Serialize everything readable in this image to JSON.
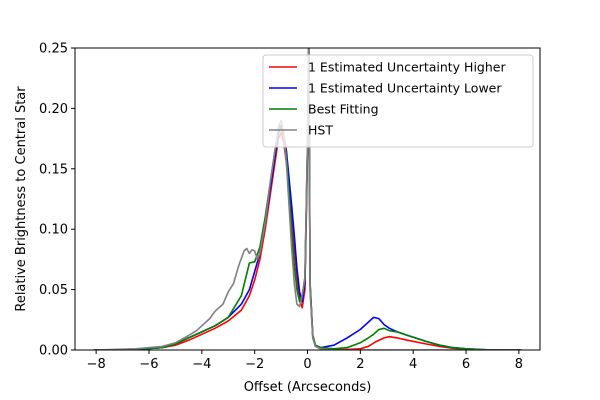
{
  "chart_data": {
    "type": "line",
    "title": "",
    "xlabel": "Offset (Arcseconds)",
    "ylabel": "Relative Brightness to Central Star",
    "xlim": [
      -8.8,
      8.8
    ],
    "ylim": [
      0,
      0.25
    ],
    "xticks": [
      -8,
      -6,
      -4,
      -2,
      0,
      2,
      4,
      6,
      8
    ],
    "xtick_labels": [
      "−8",
      "−6",
      "−4",
      "−2",
      "0",
      "2",
      "4",
      "6",
      "8"
    ],
    "yticks": [
      0,
      0.05,
      0.1,
      0.15,
      0.2,
      0.25
    ],
    "ytick_labels": [
      "0.00",
      "0.05",
      "0.10",
      "0.15",
      "0.20",
      "0.25"
    ],
    "grid": false,
    "legend_position": "top-right",
    "series": [
      {
        "name": "1 Estimated Uncertainty Higher",
        "color": "#ff0000",
        "x": [
          -8.1,
          -6.5,
          -5.5,
          -5.0,
          -4.5,
          -4.0,
          -3.5,
          -3.0,
          -2.5,
          -2.2,
          -2.0,
          -1.8,
          -1.6,
          -1.4,
          -1.2,
          -1.1,
          -1.0,
          -0.9,
          -0.8,
          -0.6,
          -0.5,
          -0.4,
          -0.3,
          -0.2,
          -0.1,
          0.0,
          0.05,
          0.1,
          0.2,
          0.3,
          0.5,
          1.0,
          1.5,
          2.0,
          2.3,
          2.6,
          2.9,
          3.1,
          3.4,
          3.8,
          4.5,
          5.0,
          5.5,
          6.0,
          7.0,
          8.1
        ],
        "y": [
          0.0,
          0.0005,
          0.002,
          0.004,
          0.008,
          0.013,
          0.018,
          0.024,
          0.033,
          0.045,
          0.058,
          0.075,
          0.1,
          0.13,
          0.16,
          0.175,
          0.18,
          0.172,
          0.155,
          0.11,
          0.085,
          0.06,
          0.042,
          0.035,
          0.05,
          0.16,
          0.255,
          0.05,
          0.01,
          0.003,
          0.001,
          0.0,
          0.0005,
          0.001,
          0.003,
          0.007,
          0.01,
          0.011,
          0.01,
          0.008,
          0.005,
          0.003,
          0.0015,
          0.0005,
          0.0,
          0.0
        ]
      },
      {
        "name": "1 Estimated Uncertainty Lower",
        "color": "#0000ff",
        "x": [
          -8.1,
          -6.5,
          -5.5,
          -5.0,
          -4.5,
          -4.0,
          -3.5,
          -3.0,
          -2.5,
          -2.2,
          -2.0,
          -1.8,
          -1.6,
          -1.4,
          -1.2,
          -1.1,
          -1.0,
          -0.9,
          -0.8,
          -0.6,
          -0.5,
          -0.4,
          -0.3,
          -0.2,
          -0.1,
          0.0,
          0.05,
          0.1,
          0.2,
          0.3,
          0.5,
          1.0,
          1.5,
          2.0,
          2.3,
          2.5,
          2.7,
          2.9,
          3.1,
          3.4,
          3.8,
          4.5,
          5.0,
          5.5,
          6.0,
          7.0,
          8.1
        ],
        "y": [
          0.0,
          0.0005,
          0.002,
          0.005,
          0.01,
          0.015,
          0.02,
          0.027,
          0.038,
          0.05,
          0.065,
          0.08,
          0.105,
          0.135,
          0.165,
          0.18,
          0.184,
          0.178,
          0.165,
          0.12,
          0.095,
          0.068,
          0.048,
          0.04,
          0.055,
          0.17,
          0.258,
          0.055,
          0.012,
          0.004,
          0.002,
          0.004,
          0.01,
          0.017,
          0.023,
          0.027,
          0.026,
          0.021,
          0.018,
          0.015,
          0.012,
          0.007,
          0.004,
          0.002,
          0.001,
          0.0,
          0.0
        ]
      },
      {
        "name": "Best Fitting",
        "color": "#008000",
        "x": [
          -8.1,
          -6.5,
          -5.5,
          -5.0,
          -4.5,
          -4.0,
          -3.5,
          -3.0,
          -2.5,
          -2.2,
          -2.0,
          -1.8,
          -1.6,
          -1.4,
          -1.2,
          -1.1,
          -1.0,
          -0.9,
          -0.8,
          -0.6,
          -0.5,
          -0.4,
          -0.3,
          -0.2,
          -0.1,
          0.0,
          0.05,
          0.1,
          0.2,
          0.3,
          0.5,
          1.0,
          1.5,
          2.0,
          2.3,
          2.5,
          2.7,
          2.9,
          3.1,
          3.4,
          3.8,
          4.5,
          5.0,
          5.5,
          6.0,
          7.0,
          8.1
        ],
        "y": [
          0.0,
          0.0005,
          0.002,
          0.005,
          0.01,
          0.015,
          0.02,
          0.027,
          0.045,
          0.072,
          0.073,
          0.085,
          0.11,
          0.14,
          0.17,
          0.183,
          0.186,
          0.178,
          0.16,
          0.1,
          0.07,
          0.05,
          0.04,
          0.045,
          0.06,
          0.17,
          0.258,
          0.055,
          0.012,
          0.004,
          0.002,
          0.001,
          0.002,
          0.006,
          0.01,
          0.013,
          0.017,
          0.018,
          0.016,
          0.015,
          0.012,
          0.007,
          0.004,
          0.002,
          0.001,
          0.0,
          0.0
        ]
      },
      {
        "name": "HST",
        "color": "#808080",
        "x": [
          -8.1,
          -6.5,
          -5.5,
          -5.0,
          -4.5,
          -4.2,
          -4.0,
          -3.7,
          -3.5,
          -3.2,
          -3.0,
          -2.8,
          -2.6,
          -2.4,
          -2.3,
          -2.2,
          -2.1,
          -2.0,
          -1.9,
          -1.8,
          -1.6,
          -1.4,
          -1.2,
          -1.1,
          -1.0,
          -0.9,
          -0.8,
          -0.7,
          -0.6,
          -0.5,
          -0.4,
          -0.3,
          -0.2,
          -0.1,
          0.0,
          0.05,
          0.1,
          0.2,
          0.3,
          0.5,
          1.0,
          8.1
        ],
        "y": [
          0.0,
          0.001,
          0.003,
          0.006,
          0.012,
          0.016,
          0.02,
          0.026,
          0.032,
          0.038,
          0.048,
          0.055,
          0.07,
          0.082,
          0.084,
          0.08,
          0.083,
          0.082,
          0.075,
          0.08,
          0.105,
          0.14,
          0.17,
          0.185,
          0.19,
          0.18,
          0.155,
          0.12,
          0.085,
          0.055,
          0.038,
          0.036,
          0.045,
          0.06,
          0.175,
          0.258,
          0.05,
          0.01,
          0.003,
          0.001,
          0.0,
          0.0
        ]
      }
    ]
  }
}
